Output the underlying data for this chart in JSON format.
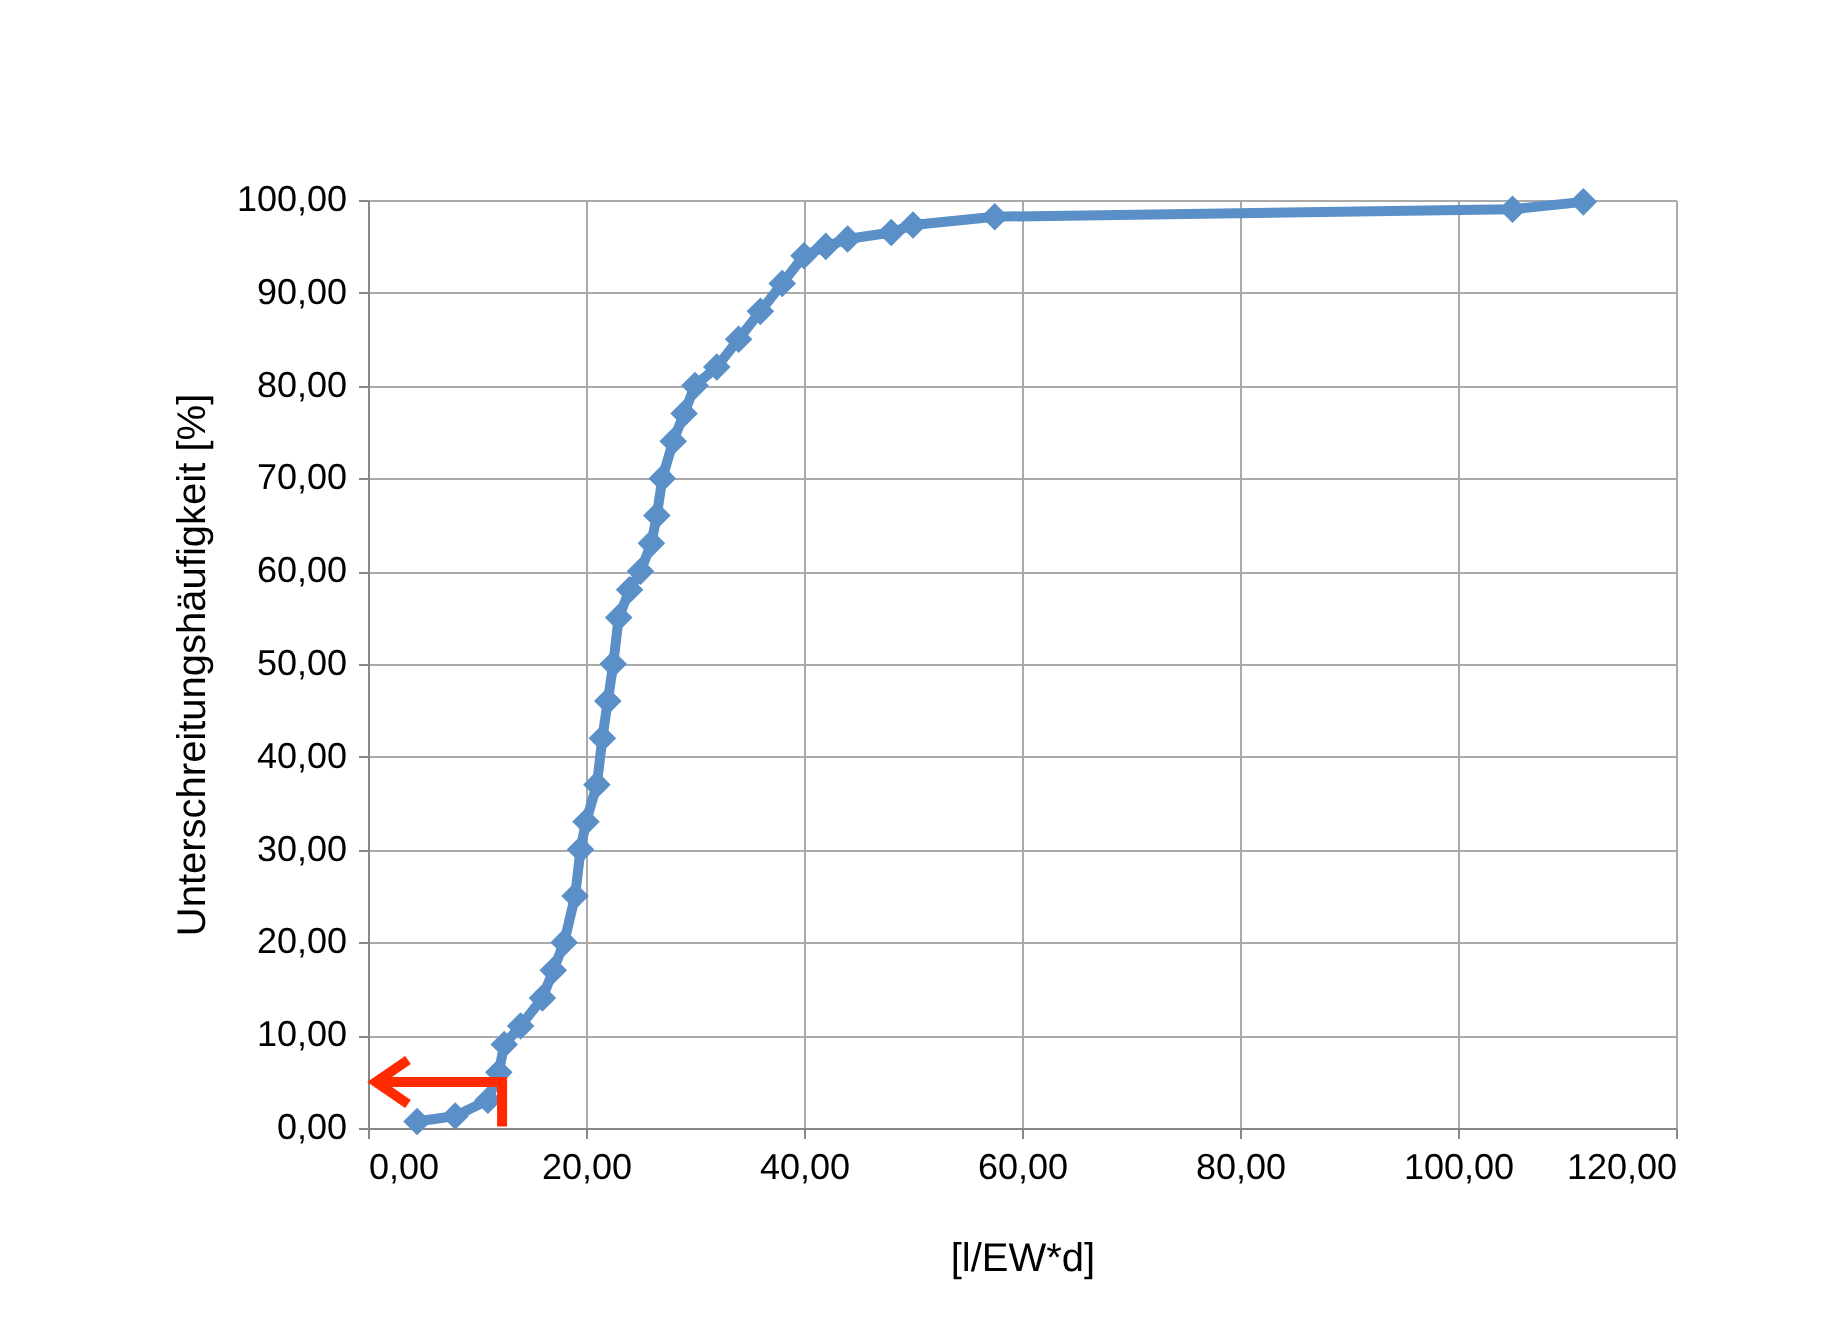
{
  "chart_data": {
    "type": "line",
    "xlabel": "[l/EW*d]",
    "ylabel": "Unterschreitungshäufigkeit [%]",
    "x": [
      4.5,
      8,
      11,
      12,
      12.5,
      14,
      16,
      17,
      18,
      19,
      19.5,
      20,
      21,
      21.5,
      22,
      22.5,
      23,
      24,
      25,
      26,
      26.5,
      27,
      28,
      29,
      30,
      32,
      34,
      36,
      38,
      40,
      42,
      44,
      48,
      50,
      57.5,
      105,
      111.5
    ],
    "series": [
      {
        "color": "#5a8fc8",
        "values": [
          0.7,
          1.3,
          3,
          6,
          9,
          11,
          14,
          17,
          20,
          25,
          30,
          33,
          37,
          42,
          46,
          50,
          55,
          58,
          60,
          63,
          66,
          70,
          74,
          77,
          80,
          82,
          85,
          88,
          91,
          94,
          95,
          95.8,
          96.5,
          97.3,
          98.2,
          99,
          99.8
        ]
      }
    ],
    "xlim": [
      0,
      120
    ],
    "ylim": [
      0,
      100
    ],
    "xticks": [
      {
        "value": 0,
        "label": "0,00"
      },
      {
        "value": 20,
        "label": "20,00"
      },
      {
        "value": 40,
        "label": "40,00"
      },
      {
        "value": 60,
        "label": "60,00"
      },
      {
        "value": 80,
        "label": "80,00"
      },
      {
        "value": 100,
        "label": "100,00"
      },
      {
        "value": 120,
        "label": "120,00"
      }
    ],
    "yticks": [
      {
        "value": 0,
        "label": "0,00"
      },
      {
        "value": 10,
        "label": "10,00"
      },
      {
        "value": 20,
        "label": "20,00"
      },
      {
        "value": 30,
        "label": "30,00"
      },
      {
        "value": 40,
        "label": "40,00"
      },
      {
        "value": 50,
        "label": "50,00"
      },
      {
        "value": 60,
        "label": "60,00"
      },
      {
        "value": 70,
        "label": "70,00"
      },
      {
        "value": 80,
        "label": "80,00"
      },
      {
        "value": 90,
        "label": "90,00"
      },
      {
        "value": 100,
        "label": "100,00"
      }
    ],
    "grid": true,
    "marker": "diamond",
    "line_style": "solid"
  }
}
